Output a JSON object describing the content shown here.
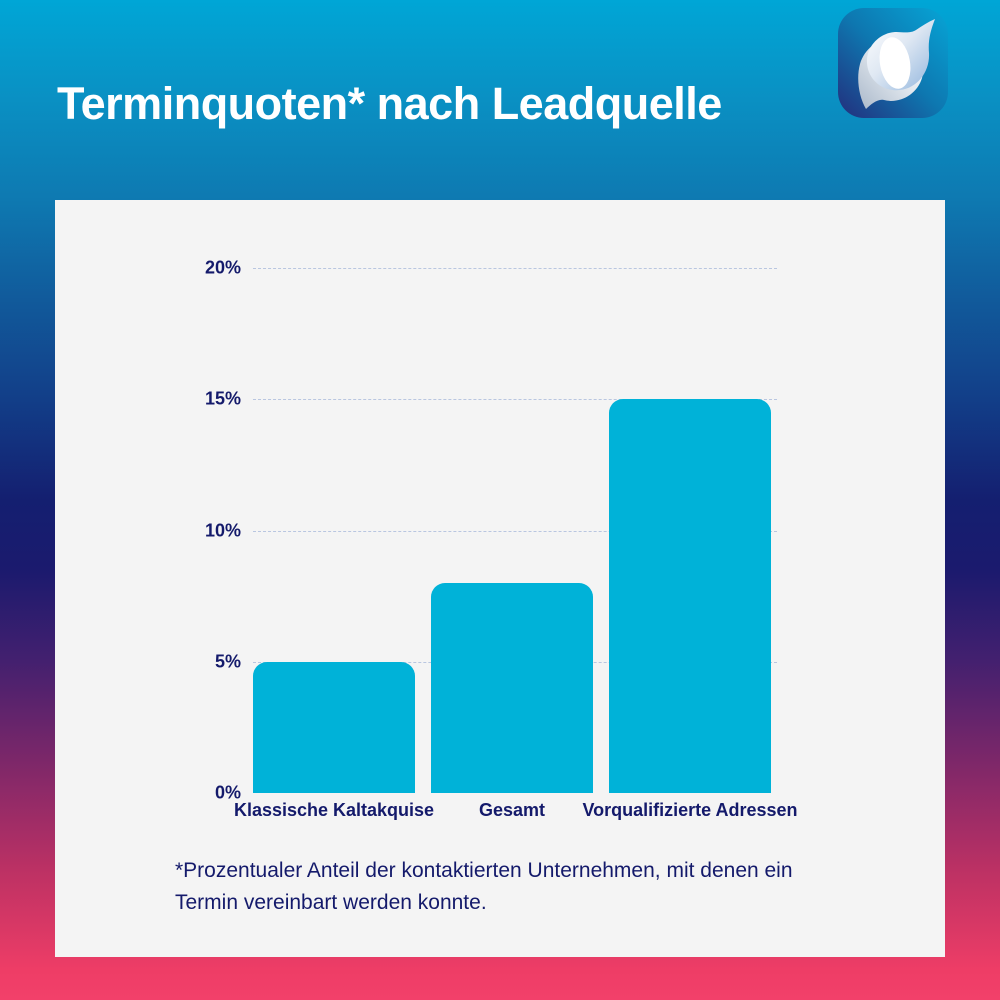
{
  "header": {
    "title": "Terminquoten* nach Leadquelle"
  },
  "chart_data": {
    "type": "bar",
    "title": "Terminquoten* nach Leadquelle",
    "categories": [
      "Klassische Kaltakquise",
      "Gesamt",
      "Vorqualifizierte Adressen"
    ],
    "values": [
      5,
      8,
      15
    ],
    "unit": "%",
    "xlabel": "",
    "ylabel": "",
    "ylim": [
      0,
      20
    ],
    "yticks": [
      0,
      5,
      10,
      15,
      20
    ],
    "ytick_labels": [
      "0%",
      "5%",
      "10%",
      "15%",
      "20%"
    ],
    "grid": "horizontal dashed gridlines, no axis lines, no legend",
    "legend": "none",
    "bar_color": "#00b2d8"
  },
  "footnote": {
    "text": "*Prozentualer Anteil der kontaktierten Unternehmen, mit denen ein Termin vereinbart werden konnte."
  },
  "colors": {
    "bar": "#00b2d8",
    "text_navy": "#141a6b",
    "card_background": "#f4f4f4",
    "gridline": "#b9c6e0",
    "title_text": "#ffffff",
    "gradient_top": "#00a6d6",
    "gradient_middle": "#1b1a6e",
    "gradient_bottom": "#f2406a",
    "logo_navy": "#232e7c",
    "logo_cyan": "#06a5d6"
  }
}
